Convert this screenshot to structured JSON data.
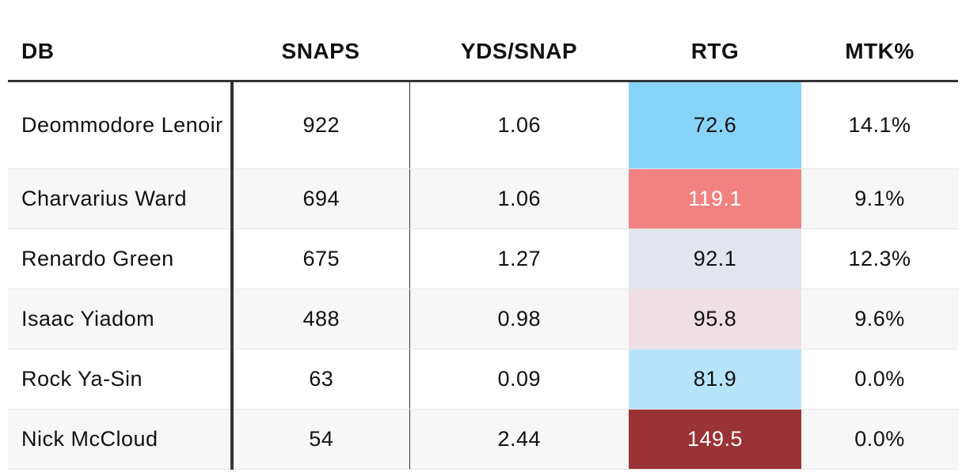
{
  "chart_data": {
    "type": "table",
    "columns": [
      "DB",
      "SNAPS",
      "YDS/SNAP",
      "RTG",
      "MTK%"
    ],
    "rows": [
      {
        "db": "Deommodore Lenoir",
        "snaps": "922",
        "yds_snap": "1.06",
        "rtg": "72.6",
        "mtk": "14.1%",
        "rtg_color": "#87d4f8",
        "rtg_text_color": "#111111"
      },
      {
        "db": "Charvarius Ward",
        "snaps": "694",
        "yds_snap": "1.06",
        "rtg": "119.1",
        "mtk": "9.1%",
        "rtg_color": "#f28282",
        "rtg_text_color": "#ffffff"
      },
      {
        "db": "Renardo Green",
        "snaps": "675",
        "yds_snap": "1.27",
        "rtg": "92.1",
        "mtk": "12.3%",
        "rtg_color": "#e2e4ee",
        "rtg_text_color": "#111111"
      },
      {
        "db": "Isaac Yiadom",
        "snaps": "488",
        "yds_snap": "0.98",
        "rtg": "95.8",
        "mtk": "9.6%",
        "rtg_color": "#eedfe4",
        "rtg_text_color": "#111111"
      },
      {
        "db": "Rock Ya-Sin",
        "snaps": "63",
        "yds_snap": "0.09",
        "rtg": "81.9",
        "mtk": "0.0%",
        "rtg_color": "#b7e4fa",
        "rtg_text_color": "#111111"
      },
      {
        "db": "Nick McCloud",
        "snaps": "54",
        "yds_snap": "2.44",
        "rtg": "149.5",
        "mtk": "0.0%",
        "rtg_color": "#9a3336",
        "rtg_text_color": "#ffffff"
      }
    ]
  }
}
